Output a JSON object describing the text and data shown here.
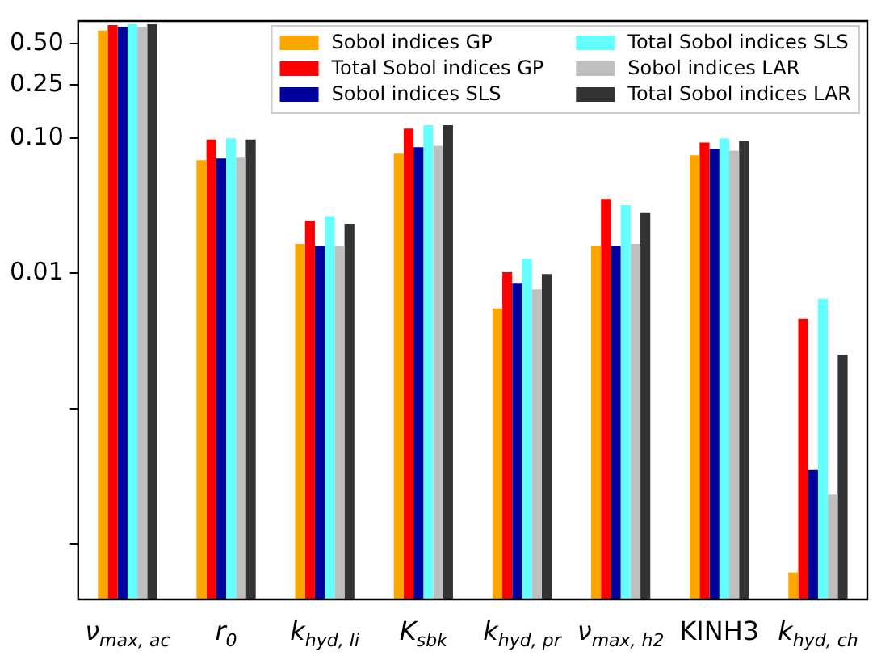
{
  "chart_data": {
    "type": "bar",
    "log": "y",
    "grid": false,
    "legend": "top right",
    "categories": [
      "ν$_{max, ac}$",
      "r$_{0}$",
      "k$_{hyd, li}$",
      "K$_{sbk}$",
      "k$_{hyd, pr}$",
      "ν$_{max, h2}$",
      "KINH3",
      "k$_{hyd, ch}$"
    ],
    "ylim": [
      3.85e-05,
      0.74
    ],
    "yticks": [
      {
        "value": 0.0001,
        "label": null
      },
      {
        "value": 0.001,
        "label": null
      },
      {
        "value": 0.01,
        "label": "0.01"
      },
      {
        "value": 0.1,
        "label": "0.10"
      },
      {
        "value": 0.25,
        "label": "0.25"
      },
      {
        "value": 0.5,
        "label": "0.50"
      }
    ],
    "series": [
      {
        "name": "Sobol indices GP",
        "color": "#ffa500",
        "values": [
          0.63,
          0.069,
          0.0165,
          0.077,
          0.0055,
          0.016,
          0.075,
          6.1e-05
        ]
      },
      {
        "name": "Total Sobol indices GP",
        "color": "#ff0000",
        "values": [
          0.69,
          0.098,
          0.0246,
          0.118,
          0.0102,
          0.0356,
          0.093,
          0.0046
        ]
      },
      {
        "name": "Sobol indices SLS",
        "color": "#00009c",
        "values": [
          0.67,
          0.071,
          0.016,
          0.086,
          0.0085,
          0.016,
          0.084,
          0.00035
        ]
      },
      {
        "name": "Total Sobol indices SLS",
        "color": "#66ffff",
        "values": [
          0.7,
          0.1,
          0.0266,
          0.125,
          0.0129,
          0.032,
          0.1,
          0.0065
        ]
      },
      {
        "name": "Sobol indices LAR",
        "color": "#bfbfbf",
        "values": [
          0.67,
          0.073,
          0.016,
          0.088,
          0.0076,
          0.0165,
          0.081,
          0.00023
        ]
      },
      {
        "name": "Total Sobol indices LAR",
        "color": "#333333",
        "values": [
          0.7,
          0.098,
          0.0233,
          0.125,
          0.0099,
          0.028,
          0.096,
          0.0025
        ]
      }
    ]
  }
}
